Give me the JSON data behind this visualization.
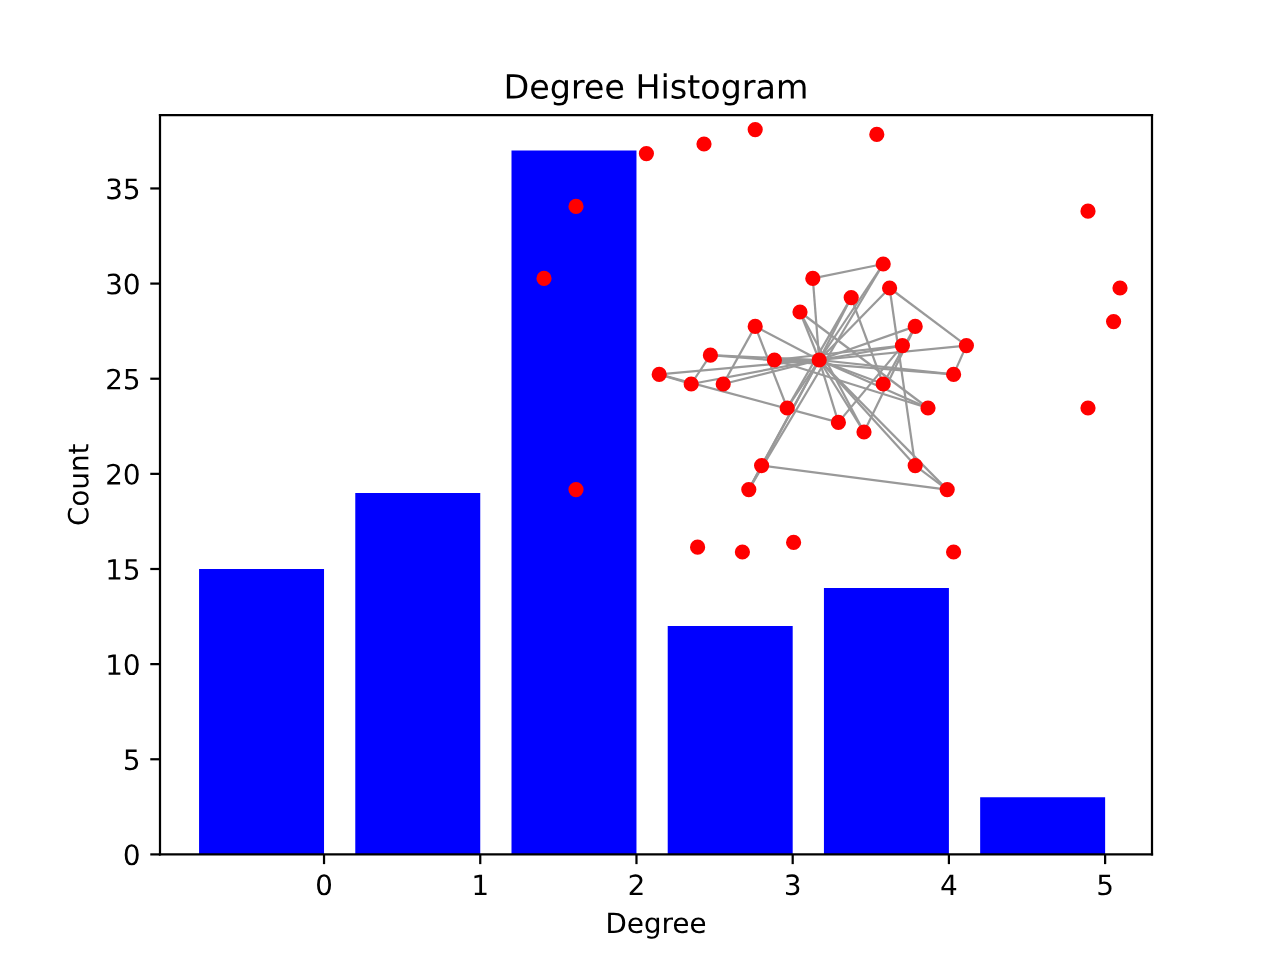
{
  "chart_data": {
    "type": "bar",
    "title": "Degree Histogram",
    "xlabel": "Degree",
    "ylabel": "Count",
    "x": [
      -0.4,
      0.6,
      1.6,
      2.6,
      3.6,
      4.6
    ],
    "values": [
      15,
      19,
      37,
      12,
      14,
      3
    ],
    "color": "#0000ff",
    "xlim": [
      -1.05,
      5.3
    ],
    "xticks": [
      0,
      1,
      2,
      3,
      4,
      5
    ],
    "ylim": [
      0,
      38.85
    ],
    "yticks": [
      0,
      5,
      10,
      15,
      20,
      25,
      30,
      35
    ],
    "grid": false
  }
}
